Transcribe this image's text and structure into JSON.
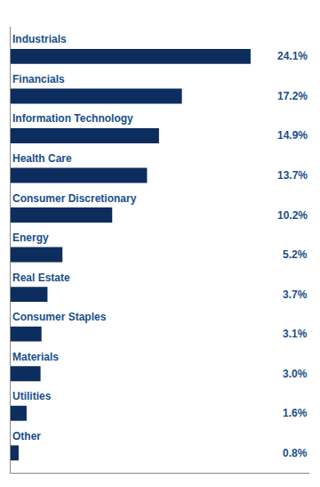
{
  "chart_data": {
    "type": "bar",
    "orientation": "horizontal",
    "categories": [
      "Industrials",
      "Financials",
      "Information Technology",
      "Health Care",
      "Consumer Discretionary",
      "Energy",
      "Real Estate",
      "Consumer Staples",
      "Materials",
      "Utilities",
      "Other"
    ],
    "values": [
      24.1,
      17.2,
      14.9,
      13.7,
      10.2,
      5.2,
      3.7,
      3.1,
      3.0,
      1.6,
      0.8
    ],
    "value_labels": [
      "24.1%",
      "17.2%",
      "14.9%",
      "13.7%",
      "10.2%",
      "5.2%",
      "3.7%",
      "3.1%",
      "3.0%",
      "1.6%",
      "0.8%"
    ],
    "data_labels": true,
    "color": "#0d2d5e",
    "xlim": [
      0,
      30
    ],
    "tick_labels": false,
    "grid": false
  }
}
